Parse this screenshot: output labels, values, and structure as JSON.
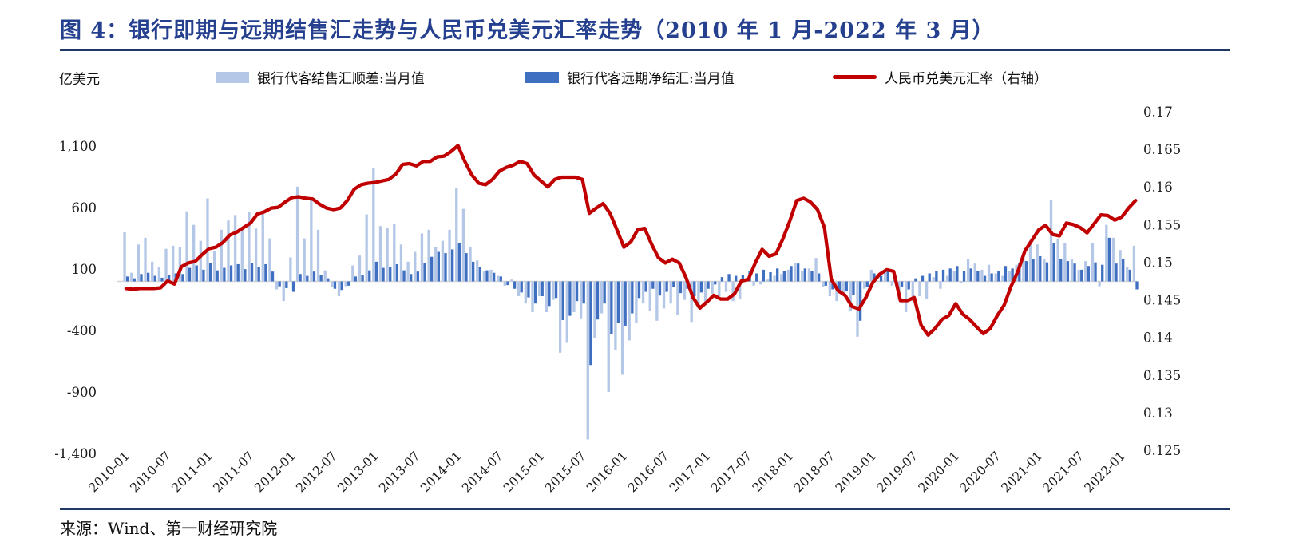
{
  "figure": {
    "title": "图 4：银行即期与远期结售汇走势与人民币兑美元汇率走势（2010 年 1 月-2022 年 3 月）",
    "unit_label": "亿美元",
    "source": "来源：Wind、第一财经研究院"
  },
  "colors": {
    "title_navy": "#24408E",
    "rule_navy": "#1F3864",
    "spot_bar": "#B4C7E6",
    "forward_bar": "#3F6FC1",
    "rate_line": "#C00000",
    "zero_axis": "#D6D6D6"
  },
  "legend": {
    "spot_label": "银行代客结售汇顺差:当月值",
    "forward_label": "银行代客远期净结汇:当月值",
    "rate_label": "人民币兑美元汇率（右轴）"
  },
  "chart_data": {
    "type": "bar+line",
    "title": "银行即期与远期结售汇走势与人民币兑美元汇率走势",
    "x_start": "2010-01",
    "x_end": "2022-03",
    "x_step_months": 1,
    "grid": false,
    "legend_position": "top",
    "x_tick_labels": [
      "2010-01",
      "2010-07",
      "2011-01",
      "2011-07",
      "2012-01",
      "2012-07",
      "2013-01",
      "2013-07",
      "2014-01",
      "2014-07",
      "2015-01",
      "2015-07",
      "2016-01",
      "2016-07",
      "2017-01",
      "2017-07",
      "2018-01",
      "2018-07",
      "2019-01",
      "2019-07",
      "2020-01",
      "2020-07",
      "2021-01",
      "2021-07",
      "2022-01"
    ],
    "left_axis": {
      "unit": "亿美元",
      "range": [
        -1400,
        1100
      ],
      "ticks": [
        {
          "label": "1,100",
          "value": 1100
        },
        {
          "label": "600",
          "value": 600
        },
        {
          "label": "100",
          "value": 100
        },
        {
          "label": "-400",
          "value": -400
        },
        {
          "label": "-900",
          "value": -900
        },
        {
          "label": "-1,400",
          "value": -1400
        }
      ]
    },
    "right_axis": {
      "range": [
        0.125,
        0.17
      ],
      "ticks": [
        {
          "label": "0.17",
          "value": 0.17
        },
        {
          "label": "0.165",
          "value": 0.165
        },
        {
          "label": "0.16",
          "value": 0.16
        },
        {
          "label": "0.155",
          "value": 0.155
        },
        {
          "label": "0.15",
          "value": 0.15
        },
        {
          "label": "0.145",
          "value": 0.145
        },
        {
          "label": "0.14",
          "value": 0.14
        },
        {
          "label": "0.135",
          "value": 0.135
        },
        {
          "label": "0.13",
          "value": 0.13
        },
        {
          "label": "0.125",
          "value": 0.125
        }
      ]
    },
    "series": [
      {
        "name": "银行代客结售汇顺差:当月值",
        "type": "bar",
        "axis": "left",
        "color": "#B4C7E6",
        "values": [
          400,
          70,
          300,
          355,
          160,
          115,
          265,
          290,
          280,
          570,
          460,
          330,
          675,
          250,
          420,
          495,
          540,
          420,
          565,
          430,
          570,
          350,
          -65,
          -160,
          195,
          770,
          350,
          670,
          420,
          90,
          -45,
          -120,
          -40,
          130,
          210,
          545,
          926,
          450,
          435,
          470,
          300,
          160,
          240,
          390,
          420,
          280,
          330,
          420,
          763,
          590,
          280,
          170,
          80,
          95,
          45,
          -35,
          15,
          -120,
          -180,
          -250,
          -120,
          -250,
          -150,
          -580,
          -500,
          -250,
          -300,
          -1285,
          -460,
          -260,
          -900,
          -560,
          -760,
          -480,
          -340,
          -180,
          -240,
          -320,
          -220,
          -180,
          -270,
          -150,
          -330,
          -220,
          -190,
          -100,
          -120,
          -85,
          -160,
          -140,
          25,
          -35,
          -25,
          15,
          45,
          60,
          95,
          150,
          85,
          105,
          190,
          -45,
          -120,
          -160,
          -90,
          -240,
          -450,
          -60,
          95,
          5,
          85,
          -35,
          -150,
          -250,
          -160,
          -120,
          -145,
          35,
          -60,
          45,
          85,
          -15,
          185,
          145,
          95,
          135,
          65,
          45,
          85,
          135,
          215,
          300,
          300,
          180,
          660,
          345,
          315,
          180,
          95,
          165,
          310,
          -40,
          460,
          355,
          255,
          120,
          290
        ]
      },
      {
        "name": "银行代客远期净结汇:当月值",
        "type": "bar",
        "axis": "left",
        "color": "#3F6FC1",
        "values": [
          40,
          25,
          60,
          70,
          45,
          30,
          55,
          65,
          60,
          110,
          130,
          95,
          150,
          90,
          110,
          130,
          140,
          100,
          150,
          115,
          140,
          80,
          -40,
          -55,
          -85,
          60,
          45,
          80,
          55,
          25,
          -60,
          -70,
          -35,
          40,
          55,
          90,
          160,
          110,
          120,
          140,
          90,
          60,
          80,
          150,
          200,
          240,
          230,
          260,
          310,
          230,
          160,
          120,
          90,
          70,
          40,
          -30,
          -60,
          -90,
          -130,
          -180,
          -120,
          -200,
          -135,
          -315,
          -280,
          -160,
          -180,
          -680,
          -310,
          -180,
          -430,
          -340,
          -360,
          -260,
          -135,
          -85,
          -60,
          -115,
          -85,
          -45,
          -95,
          -60,
          -120,
          -90,
          -60,
          -25,
          35,
          60,
          45,
          55,
          85,
          65,
          95,
          75,
          105,
          85,
          125,
          145,
          105,
          85,
          65,
          -35,
          -65,
          -95,
          -75,
          -110,
          -320,
          -45,
          65,
          45,
          85,
          35,
          -45,
          -65,
          25,
          45,
          65,
          85,
          95,
          105,
          125,
          85,
          105,
          85,
          45,
          65,
          85,
          125,
          105,
          145,
          165,
          185,
          205,
          155,
          315,
          185,
          165,
          145,
          95,
          125,
          155,
          135,
          355,
          145,
          185,
          95,
          -65
        ]
      },
      {
        "name": "人民币兑美元汇率（右轴）",
        "type": "line",
        "axis": "right",
        "color": "#C00000",
        "values": [
          0.1465,
          0.1464,
          0.1465,
          0.1465,
          0.1465,
          0.1466,
          0.1475,
          0.1471,
          0.1494,
          0.1499,
          0.1501,
          0.151,
          0.1518,
          0.152,
          0.1526,
          0.1536,
          0.154,
          0.1546,
          0.1552,
          0.1564,
          0.1567,
          0.1572,
          0.1573,
          0.158,
          0.1586,
          0.1587,
          0.1585,
          0.1584,
          0.1577,
          0.1572,
          0.157,
          0.1572,
          0.1582,
          0.1597,
          0.1603,
          0.1605,
          0.1606,
          0.1608,
          0.161,
          0.1617,
          0.163,
          0.1631,
          0.1628,
          0.1634,
          0.1634,
          0.164,
          0.1641,
          0.1647,
          0.1655,
          0.1634,
          0.1616,
          0.1605,
          0.1603,
          0.161,
          0.1621,
          0.1626,
          0.1629,
          0.1634,
          0.1631,
          0.1616,
          0.1608,
          0.16,
          0.161,
          0.1613,
          0.1613,
          0.1613,
          0.161,
          0.1565,
          0.1572,
          0.1578,
          0.1565,
          0.1543,
          0.152,
          0.1527,
          0.1543,
          0.1545,
          0.1524,
          0.1506,
          0.1499,
          0.1504,
          0.1499,
          0.1479,
          0.1453,
          0.1439,
          0.1447,
          0.1456,
          0.1451,
          0.1451,
          0.1458,
          0.1475,
          0.1477,
          0.1499,
          0.1517,
          0.1508,
          0.1511,
          0.1531,
          0.1555,
          0.1582,
          0.1585,
          0.158,
          0.157,
          0.1546,
          0.1477,
          0.1462,
          0.1456,
          0.1441,
          0.1438,
          0.1453,
          0.1473,
          0.1484,
          0.149,
          0.1488,
          0.1449,
          0.1449,
          0.1453,
          0.1416,
          0.1403,
          0.1412,
          0.1424,
          0.1429,
          0.1445,
          0.1431,
          0.1424,
          0.1414,
          0.1405,
          0.1412,
          0.1429,
          0.1443,
          0.1468,
          0.1488,
          0.1515,
          0.1529,
          0.1543,
          0.1549,
          0.1537,
          0.1535,
          0.1552,
          0.155,
          0.1546,
          0.1539,
          0.1551,
          0.1563,
          0.1562,
          0.1556,
          0.156,
          0.1572,
          0.1582
        ]
      }
    ]
  }
}
